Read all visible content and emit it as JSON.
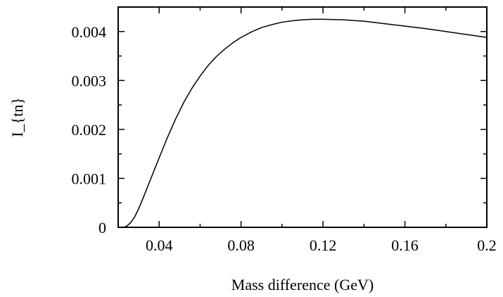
{
  "chart_data": {
    "type": "line",
    "xlabel": "Mass difference (GeV)",
    "ylabel": "I_{tn}",
    "xlim": [
      0.02,
      0.2
    ],
    "ylim": [
      0,
      0.0045
    ],
    "x_ticks": [
      0.04,
      0.08,
      0.12,
      0.16,
      0.2
    ],
    "x_tick_labels": [
      "0.04",
      "0.08",
      "0.12",
      "0.16",
      "0.2"
    ],
    "y_ticks": [
      0,
      0.001,
      0.002,
      0.003,
      0.004
    ],
    "y_tick_labels": [
      "0",
      "0.001",
      "0.002",
      "0.003",
      "0.004"
    ],
    "grid": false,
    "series": [
      {
        "color": "#000000",
        "x": [
          0.0225,
          0.024,
          0.026,
          0.028,
          0.03,
          0.032,
          0.034,
          0.036,
          0.038,
          0.04,
          0.044,
          0.048,
          0.052,
          0.056,
          0.06,
          0.064,
          0.068,
          0.072,
          0.076,
          0.08,
          0.085,
          0.09,
          0.095,
          0.1,
          0.105,
          0.11,
          0.115,
          0.12,
          0.13,
          0.14,
          0.15,
          0.16,
          0.17,
          0.18,
          0.19,
          0.2
        ],
        "y": [
          0.0,
          2e-05,
          9e-05,
          0.00021,
          0.00038,
          0.00058,
          0.00079,
          0.001,
          0.00121,
          0.00142,
          0.00183,
          0.00221,
          0.00255,
          0.00284,
          0.00309,
          0.00331,
          0.00349,
          0.00364,
          0.00377,
          0.00388,
          0.00399,
          0.00408,
          0.00414,
          0.00419,
          0.00422,
          0.00424,
          0.00425,
          0.00425,
          0.00424,
          0.00421,
          0.00416,
          0.00411,
          0.00406,
          0.004,
          0.00394,
          0.00388
        ]
      }
    ]
  }
}
